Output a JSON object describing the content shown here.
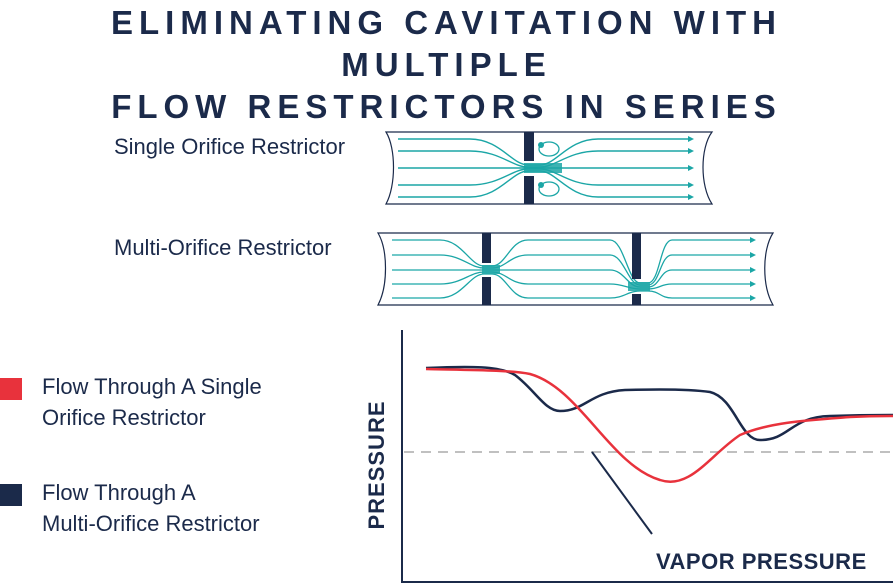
{
  "title": {
    "line1": "ELIMINATING CAVITATION WITH MULTIPLE",
    "line2": "FLOW RESTRICTORS IN SERIES"
  },
  "diagrams": {
    "single_label": "Single Orifice Restrictor",
    "multi_label": "Multi-Orifice Restrictor"
  },
  "legend": {
    "single": {
      "line1": "Flow Through A Single",
      "line2": "Orifice Restrictor",
      "color": "#e8323c"
    },
    "multi": {
      "line1": "Flow Through A",
      "line2": "Multi-Orifice Restrictor",
      "color": "#1b2a4a"
    }
  },
  "chart": {
    "ylabel": "PRESSURE",
    "annotation": "VAPOR PRESSURE",
    "flow_color": "#1ba6a6",
    "vapor_line_color": "#c0c0c0"
  }
}
